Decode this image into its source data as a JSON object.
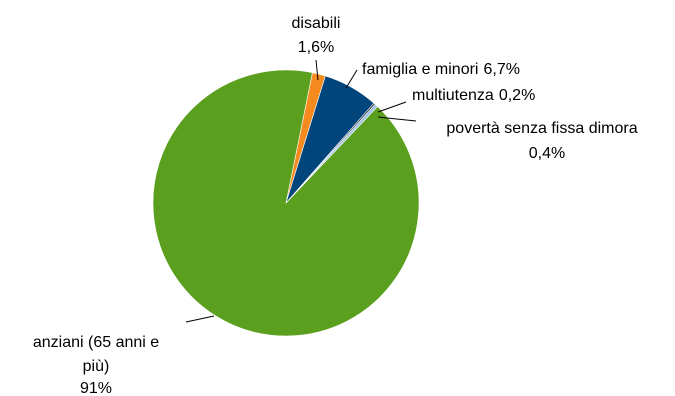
{
  "chart_data": {
    "type": "pie",
    "title": "",
    "slices": [
      {
        "label": "disabili",
        "value": 1.6,
        "value_label": "1,6%",
        "color": "#F58B1F"
      },
      {
        "label": "famiglia e minori",
        "value": 6.7,
        "value_label": "6,7%",
        "color": "#00457C"
      },
      {
        "label": "multiutenza",
        "value": 0.2,
        "value_label": "0,2%",
        "color": "#1E1E1E"
      },
      {
        "label": "povertà senza fissa dimora",
        "value": 0.4,
        "value_label": "0,4%",
        "color": "#9DC3E6"
      },
      {
        "label": "anziani (65 anni e più)",
        "value": 91,
        "value_label": "91%",
        "color": "#5B9F1E"
      }
    ],
    "legend": "none"
  }
}
